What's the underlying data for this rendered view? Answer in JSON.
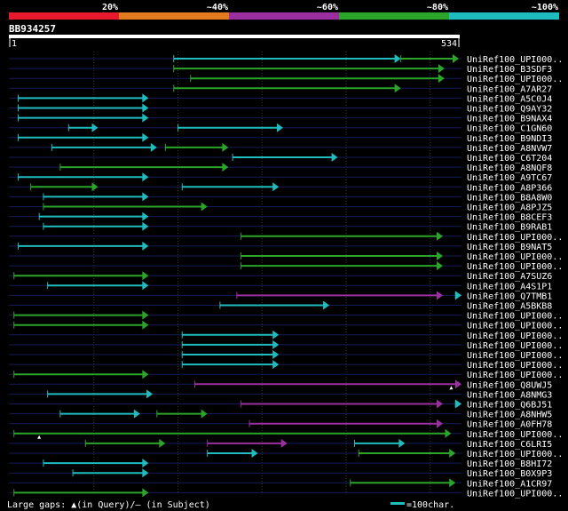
{
  "legend_scale": {
    "labels": [
      "20%",
      "~40%",
      "~60%",
      "~80%",
      "~100%"
    ],
    "colors": [
      "#e8192c",
      "#e37a1e",
      "#9b2fa0",
      "#2aa52a",
      "#1fbcbf"
    ]
  },
  "query": {
    "id": "BB934257",
    "start_label": "1",
    "end_label": "534",
    "length": 534
  },
  "footer": {
    "gaps_text": "Large gaps: ▲(in Query)/– (in Subject)",
    "scale_text": "=100char."
  },
  "chart_data": {
    "type": "alignment",
    "query_length": 534,
    "rows": [
      {
        "label": "UniRef100_UPI000..",
        "segs": [
          [
            195,
            465,
            "c"
          ],
          [
            465,
            534,
            "g"
          ]
        ],
        "ticks": []
      },
      {
        "label": "UniRef100_B3SDF3",
        "segs": [
          [
            195,
            517,
            "g"
          ]
        ],
        "ticks": []
      },
      {
        "label": "UniRef100_UPI000..",
        "segs": [
          [
            215,
            517,
            "g"
          ]
        ],
        "ticks": []
      },
      {
        "label": "UniRef100_A7AR27",
        "segs": [
          [
            195,
            465,
            "g"
          ]
        ],
        "ticks": []
      },
      {
        "label": "UniRef100_A5C0J4",
        "segs": [
          [
            10,
            165,
            "c"
          ]
        ],
        "ticks": []
      },
      {
        "label": "UniRef100_Q9AY32",
        "segs": [
          [
            10,
            165,
            "c"
          ]
        ],
        "ticks": []
      },
      {
        "label": "UniRef100_B9NAX4",
        "segs": [
          [
            10,
            165,
            "c"
          ]
        ],
        "ticks": []
      },
      {
        "label": "UniRef100_C1GN60",
        "segs": [
          [
            70,
            105,
            "c"
          ],
          [
            200,
            325,
            "c"
          ]
        ],
        "ticks": []
      },
      {
        "label": "UniRef100_B9NDI3",
        "segs": [
          [
            10,
            165,
            "c"
          ]
        ],
        "ticks": []
      },
      {
        "label": "UniRef100_A8NVW7",
        "segs": [
          [
            50,
            175,
            "c"
          ],
          [
            185,
            260,
            "g"
          ]
        ],
        "ticks": []
      },
      {
        "label": "UniRef100_C6T204",
        "segs": [
          [
            265,
            390,
            "c"
          ]
        ],
        "ticks": []
      },
      {
        "label": "UniRef100_A8NQF8",
        "segs": [
          [
            60,
            260,
            "g"
          ]
        ],
        "ticks": []
      },
      {
        "label": "UniRef100_A9TC67",
        "segs": [
          [
            10,
            165,
            "c"
          ]
        ],
        "ticks": []
      },
      {
        "label": "UniRef100_A8P366",
        "segs": [
          [
            25,
            105,
            "g"
          ],
          [
            205,
            320,
            "c"
          ]
        ],
        "ticks": []
      },
      {
        "label": "UniRef100_B8A8W0",
        "segs": [
          [
            40,
            165,
            "c"
          ]
        ],
        "ticks": []
      },
      {
        "label": "UniRef100_A8PJZ5",
        "segs": [
          [
            40,
            235,
            "g"
          ]
        ],
        "ticks": []
      },
      {
        "label": "UniRef100_B8CEF3",
        "segs": [
          [
            35,
            165,
            "c"
          ]
        ],
        "ticks": []
      },
      {
        "label": "UniRef100_B9RAB1",
        "segs": [
          [
            40,
            165,
            "c"
          ]
        ],
        "ticks": []
      },
      {
        "label": "UniRef100_UPI000..",
        "segs": [
          [
            275,
            515,
            "g"
          ]
        ],
        "ticks": []
      },
      {
        "label": "UniRef100_B9NAT5",
        "segs": [
          [
            10,
            165,
            "c"
          ]
        ],
        "ticks": []
      },
      {
        "label": "UniRef100_UPI000..",
        "segs": [
          [
            275,
            515,
            "g"
          ]
        ],
        "ticks": []
      },
      {
        "label": "UniRef100_UPI000..",
        "segs": [
          [
            275,
            515,
            "g"
          ]
        ],
        "ticks": []
      },
      {
        "label": "UniRef100_A7SUZ6",
        "segs": [
          [
            5,
            165,
            "g"
          ]
        ],
        "ticks": []
      },
      {
        "label": "UniRef100_A4S1P1",
        "segs": [
          [
            45,
            165,
            "c"
          ]
        ],
        "ticks": []
      },
      {
        "label": "UniRef100_Q7TMB1",
        "segs": [
          [
            270,
            515,
            "p"
          ],
          [
            530,
            560,
            "c"
          ]
        ],
        "ticks": []
      },
      {
        "label": "UniRef100_A5BKB8",
        "segs": [
          [
            250,
            380,
            "c"
          ]
        ],
        "ticks": []
      },
      {
        "label": "UniRef100_UPI000..",
        "segs": [
          [
            5,
            165,
            "g"
          ]
        ],
        "ticks": []
      },
      {
        "label": "UniRef100_UPI000..",
        "segs": [
          [
            5,
            165,
            "g"
          ]
        ],
        "ticks": []
      },
      {
        "label": "UniRef100_UPI000..",
        "segs": [
          [
            205,
            320,
            "c"
          ]
        ],
        "ticks": []
      },
      {
        "label": "UniRef100_UPI000..",
        "segs": [
          [
            205,
            320,
            "c"
          ]
        ],
        "ticks": []
      },
      {
        "label": "UniRef100_UPI000..",
        "segs": [
          [
            205,
            320,
            "c"
          ]
        ],
        "ticks": []
      },
      {
        "label": "UniRef100_UPI000..",
        "segs": [
          [
            205,
            320,
            "c"
          ]
        ],
        "ticks": []
      },
      {
        "label": "UniRef100_UPI000..",
        "segs": [
          [
            5,
            165,
            "g"
          ]
        ],
        "ticks": []
      },
      {
        "label": "UniRef100_Q8UWJ5",
        "segs": [
          [
            220,
            555,
            "p"
          ]
        ],
        "ticks": [
          525
        ]
      },
      {
        "label": "UniRef100_A8NMG3",
        "segs": [
          [
            45,
            170,
            "c"
          ]
        ],
        "ticks": []
      },
      {
        "label": "UniRef100_Q6BJ51",
        "segs": [
          [
            275,
            515,
            "p"
          ],
          [
            530,
            560,
            "c"
          ]
        ],
        "ticks": []
      },
      {
        "label": "UniRef100_A8NHW5",
        "segs": [
          [
            60,
            155,
            "c"
          ],
          [
            175,
            235,
            "g"
          ]
        ],
        "ticks": []
      },
      {
        "label": "UniRef100_A0FH78",
        "segs": [
          [
            285,
            515,
            "p"
          ]
        ],
        "ticks": []
      },
      {
        "label": "UniRef100_UPI000..",
        "segs": [
          [
            5,
            525,
            "g"
          ]
        ],
        "ticks": [
          35
        ]
      },
      {
        "label": "UniRef100_C6LRI5",
        "segs": [
          [
            90,
            185,
            "g"
          ],
          [
            235,
            330,
            "p"
          ],
          [
            410,
            470,
            "c"
          ]
        ],
        "ticks": []
      },
      {
        "label": "UniRef100_UPI000..",
        "segs": [
          [
            235,
            295,
            "c"
          ],
          [
            415,
            530,
            "g"
          ]
        ],
        "ticks": []
      },
      {
        "label": "UniRef100_B8HI72",
        "segs": [
          [
            40,
            165,
            "c"
          ]
        ],
        "ticks": []
      },
      {
        "label": "UniRef100_B0X9P3",
        "segs": [
          [
            75,
            165,
            "c"
          ]
        ],
        "ticks": []
      },
      {
        "label": "UniRef100_A1CR97",
        "segs": [
          [
            405,
            530,
            "g"
          ]
        ],
        "ticks": []
      },
      {
        "label": "UniRef100_UPI000..",
        "segs": [
          [
            5,
            165,
            "g"
          ]
        ],
        "ticks": []
      }
    ]
  }
}
